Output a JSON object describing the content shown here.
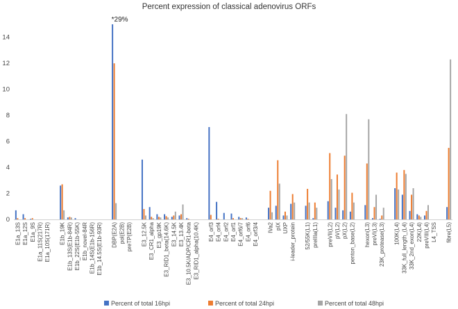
{
  "chart_data": {
    "type": "bar",
    "title": "Percent expression of classical adenovirus ORFs",
    "xlabel": "",
    "ylabel": "",
    "ylim": [
      0,
      15
    ],
    "yticks": [
      0,
      2,
      4,
      6,
      8,
      10,
      12,
      14
    ],
    "grid": false,
    "legend_position": "bottom",
    "annotation": {
      "text": "*29%",
      "category": "DBP(E2A)"
    },
    "colors": [
      "#4472c4",
      "#ed7d31",
      "#a5a5a5"
    ],
    "categories": [
      "E1a_13S",
      "E1a_12S",
      "E1a_9S",
      "E1a_11S(217R)",
      "E1a_10S(171R)",
      "",
      "E1b_19K",
      "E1b_13S(E1b-84R)",
      "E1b_22S(E1b-55K)",
      "E1b_novel-84R",
      "E1b_14S(E1b-156R)",
      "E1b_14.5S(E1b-93R)",
      "",
      "DBP(E2A)",
      "pol(E2B)",
      "preTP(E2B)",
      "",
      "E3_12.5K",
      "E3_CR1_alpha",
      "E3_gp19K",
      "E3_RID1_beta(14.6K)",
      "E3_14.5K",
      "E3_13.4K",
      "E3_10.5K/ADP/CR1-beta",
      "E3_RID1_alpha(10.4K)",
      "",
      "E4_orf3",
      "E4_orf4",
      "E4_orf2",
      "E4_orf1",
      "E4_orf6/7",
      "E4_orf6",
      "E4_orf3/4",
      "",
      "IVa2",
      "pIX",
      "UXP",
      "i-leader_protein",
      "",
      "52/55K(L1)",
      "preIIIa(L1)",
      "",
      "preVII(L2)",
      "pV(L2)",
      "pX(L2)",
      "penton_base(L2)",
      "",
      "hexon(L3)",
      "preVI(L3)",
      "23K_protease(L3)",
      "",
      "100K(L4)",
      "33K_full_length_(L4)",
      "33K_2nd_exon(L4)",
      "22K(L4)",
      "preVIII(L4)",
      "L4_TSS",
      "",
      "fibre(L5)"
    ],
    "series": [
      {
        "name": "Percent of total 16hpi",
        "values": [
          0.7,
          0.4,
          0.05,
          0,
          0,
          0,
          2.6,
          0.15,
          0.1,
          0,
          0,
          0,
          0,
          15.0,
          0,
          0,
          0,
          4.6,
          0.95,
          0.4,
          0.4,
          0.2,
          0.3,
          0.1,
          0,
          0,
          7.1,
          1.35,
          0.5,
          0.45,
          0.2,
          0.15,
          0,
          0,
          0.9,
          1.05,
          0.3,
          1.2,
          0,
          1.05,
          0.1,
          0,
          1.4,
          0.9,
          0.7,
          0.6,
          0,
          1.1,
          0.1,
          0.05,
          0,
          2.4,
          1.9,
          0.65,
          0.4,
          0.3,
          0,
          0,
          0.95
        ]
      },
      {
        "name": "Percent of total 24hpi",
        "values": [
          0.1,
          0.1,
          0.1,
          0,
          0,
          0,
          2.7,
          0.2,
          0,
          0,
          0,
          0,
          0,
          12.0,
          0,
          0,
          0,
          0.8,
          0.2,
          0.2,
          0.25,
          0.3,
          0.4,
          0.05,
          0,
          0,
          0.35,
          0.05,
          0,
          0.1,
          0.1,
          0.05,
          0,
          0,
          2.2,
          4.55,
          0.6,
          1.95,
          0,
          2.35,
          1.3,
          0,
          5.1,
          3.45,
          4.9,
          2.05,
          0,
          4.3,
          0.95,
          0.3,
          0,
          3.6,
          3.8,
          1.9,
          0.3,
          0.65,
          0,
          0,
          5.5
        ]
      },
      {
        "name": "Percent of total 48hpi",
        "values": [
          0,
          0,
          0,
          0,
          0,
          0,
          0.7,
          0.15,
          0,
          0,
          0,
          0,
          0,
          1.25,
          0,
          0,
          0,
          0.3,
          0.1,
          0.15,
          0.15,
          0.6,
          1.15,
          0,
          0,
          0,
          0,
          0,
          0,
          0,
          0.1,
          0,
          0,
          0,
          0.55,
          2.75,
          0.3,
          1.3,
          0,
          1.3,
          0.9,
          0,
          3.1,
          2.3,
          8.1,
          1.3,
          0,
          7.7,
          1.9,
          0.9,
          0,
          2.3,
          3.5,
          2.4,
          0.2,
          1.1,
          0,
          0,
          12.3
        ]
      }
    ]
  }
}
